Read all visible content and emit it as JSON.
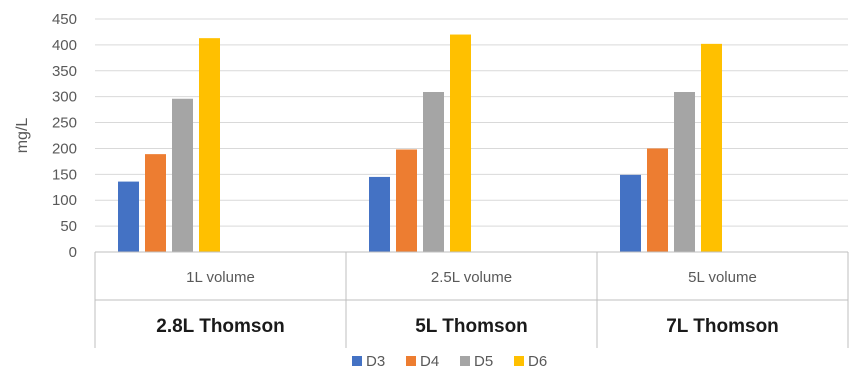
{
  "chart_data": {
    "type": "bar",
    "ylabel": "mg/L",
    "ylim": [
      0,
      450
    ],
    "yticks": [
      0,
      50,
      100,
      150,
      200,
      250,
      300,
      350,
      400,
      450
    ],
    "grid": true,
    "legend_position": "bottom",
    "categories": [
      "1L volume",
      "2.5L volume",
      "5L volume"
    ],
    "groups": [
      "2.8L Thomson",
      "5L Thomson",
      "7L Thomson"
    ],
    "series": [
      {
        "name": "D3",
        "color": "#4472C4",
        "values": [
          136,
          145,
          149
        ]
      },
      {
        "name": "D4",
        "color": "#ED7D31",
        "values": [
          189,
          198,
          200
        ]
      },
      {
        "name": "D5",
        "color": "#A5A5A5",
        "values": [
          296,
          309,
          309
        ]
      },
      {
        "name": "D6",
        "color": "#FFC000",
        "values": [
          413,
          420,
          402
        ]
      }
    ]
  }
}
